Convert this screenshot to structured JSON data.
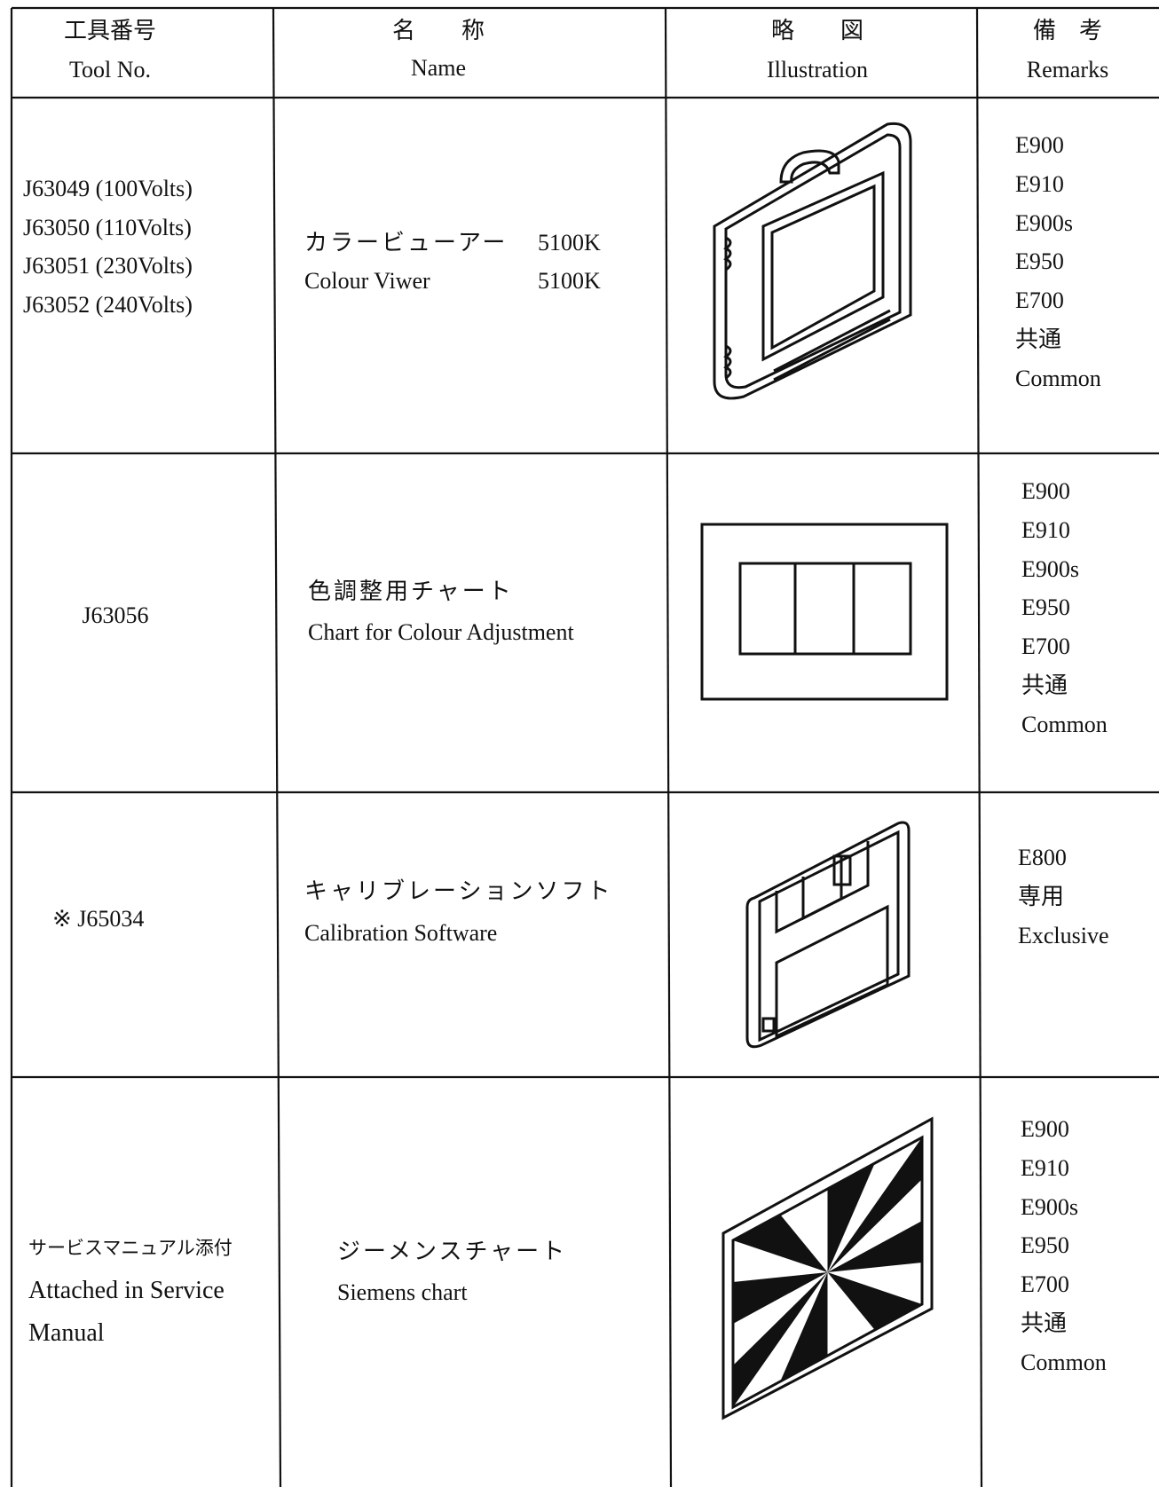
{
  "header": {
    "columns": [
      {
        "ja": "工具番号",
        "en": "Tool No."
      },
      {
        "ja": "名　　称",
        "en": "Name"
      },
      {
        "ja": "略　　図",
        "en": "Illustration"
      },
      {
        "ja": "備　考",
        "en": "Remarks"
      }
    ]
  },
  "table": {
    "rows": [
      {
        "tool_no": [
          "J63049 (100Volts)",
          "J63050 (110Volts)",
          "J63051 (230Volts)",
          "J63052 (240Volts)"
        ],
        "name": [
          "カラービューアー",
          "Colour Viwer"
        ],
        "name_spec": [
          "5100K",
          "5100K"
        ],
        "remarks": [
          "E900",
          "E910",
          "E900s",
          "E950",
          "E700",
          "共通",
          "Common"
        ]
      },
      {
        "tool_no": [
          "J63056"
        ],
        "name": [
          "色調整用チャート",
          "Chart for Colour Adjustment"
        ],
        "remarks": [
          "E900",
          "E910",
          "E900s",
          "E950",
          "E700",
          "共通",
          "Common"
        ]
      },
      {
        "tool_no": [
          "※ J65034"
        ],
        "name": [
          "キャリブレーションソフト",
          "Calibration Software"
        ],
        "remarks": [
          "E800",
          "専用",
          "Exclusive"
        ]
      },
      {
        "tool_no": [
          "サービスマニュアル添付",
          "Attached in Service",
          "Manual"
        ],
        "name": [
          "ジーメンスチャート",
          "Siemens chart"
        ],
        "remarks": [
          "E900",
          "E910",
          "E900s",
          "E950",
          "E700",
          "共通",
          "Common"
        ]
      }
    ]
  }
}
